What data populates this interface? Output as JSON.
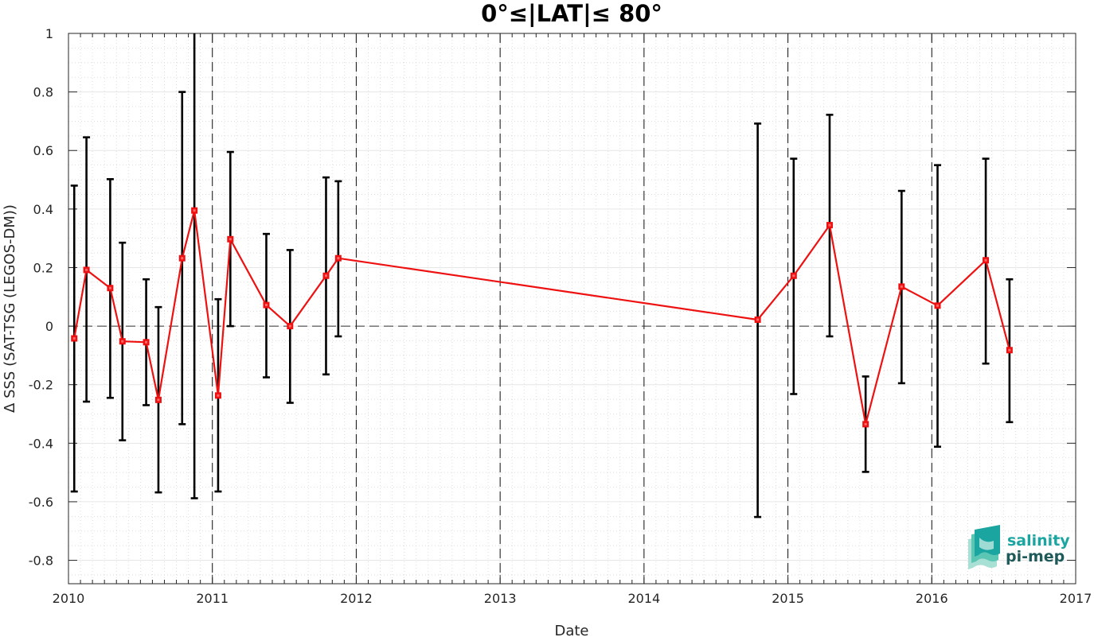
{
  "chart_data": {
    "type": "line",
    "title": "0°≤|LAT|≤ 80°",
    "xlabel": "Date",
    "ylabel": "Δ SSS (SAT-TSG (LEGOS-DM))",
    "xlim": [
      2010,
      2017
    ],
    "ylim": [
      -0.88,
      1
    ],
    "x_ticks": [
      2010,
      2011,
      2012,
      2013,
      2014,
      2015,
      2016,
      2017
    ],
    "x_tick_labels": [
      "2010",
      "2011",
      "2012",
      "2013",
      "2014",
      "2015",
      "2016",
      "2017"
    ],
    "y_ticks": [
      -0.8,
      -0.6,
      -0.4,
      -0.2,
      0,
      0.2,
      0.4,
      0.6,
      0.8,
      1
    ],
    "y_tick_labels": [
      "-0.8",
      "-0.6",
      "-0.4",
      "-0.2",
      "0",
      "0.2",
      "0.4",
      "0.6",
      "0.8",
      "1"
    ],
    "grid": true,
    "year_boundaries": [
      2011,
      2012,
      2013,
      2014,
      2015,
      2016
    ],
    "zero_line": 0,
    "series": [
      {
        "color": "#ee1111",
        "marker": "square",
        "x": [
          2010.04,
          2010.125,
          2010.29,
          2010.375,
          2010.54,
          2010.625,
          2010.79,
          2010.875,
          2011.04,
          2011.125,
          2011.375,
          2011.54,
          2011.79,
          2011.875,
          2014.79,
          2015.04,
          2015.29,
          2015.54,
          2015.79,
          2016.04,
          2016.375,
          2016.54
        ],
        "y": [
          -0.042,
          0.192,
          0.13,
          -0.052,
          -0.055,
          -0.252,
          0.232,
          0.395,
          -0.237,
          0.297,
          0.072,
          0.0,
          0.172,
          0.232,
          0.022,
          0.172,
          0.345,
          -0.335,
          0.135,
          0.07,
          0.225,
          -0.082
        ],
        "err_low": [
          -0.565,
          -0.258,
          -0.245,
          -0.39,
          -0.27,
          -0.568,
          -0.335,
          -0.588,
          -0.565,
          0.0,
          -0.175,
          -0.262,
          -0.165,
          -0.035,
          -0.652,
          -0.232,
          -0.035,
          -0.498,
          -0.195,
          -0.412,
          -0.128,
          -0.328
        ],
        "err_high": [
          0.48,
          0.645,
          0.502,
          0.285,
          0.16,
          0.065,
          0.8,
          1.05,
          0.092,
          0.595,
          0.315,
          0.26,
          0.508,
          0.495,
          0.692,
          0.572,
          0.722,
          -0.172,
          0.462,
          0.55,
          0.572,
          0.16
        ]
      }
    ]
  },
  "logo": {
    "line1": "salinity",
    "line2": "pi-mep"
  },
  "colors": {
    "line": "#ee1111",
    "errorbar": "#000000",
    "logo_teal": "#1aa5a0",
    "logo_dark": "#1f5a5a"
  }
}
